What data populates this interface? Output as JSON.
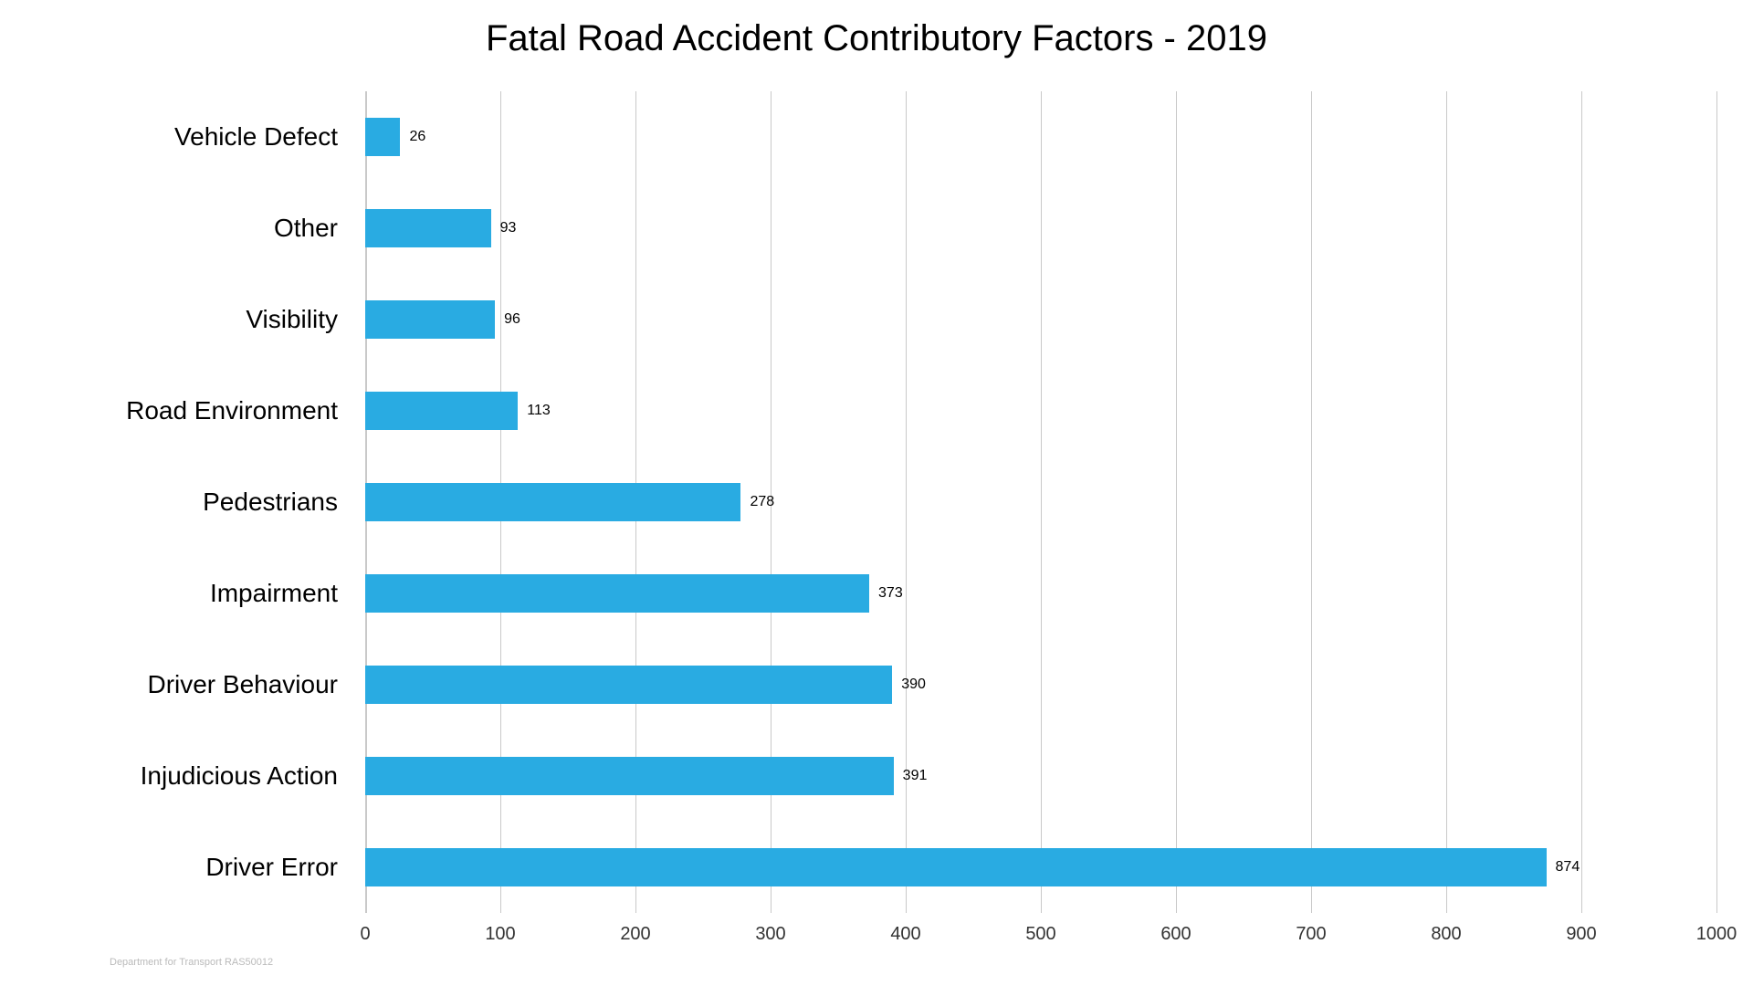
{
  "chart": {
    "type": "bar-horizontal",
    "title": "Fatal Road Accident Contributory Factors - 2019",
    "title_fontsize": 40,
    "title_color": "#000000",
    "background_color": "#ffffff",
    "bar_color": "#29abe2",
    "grid_color": "#c9c9c9",
    "axis_line_color": "#c9c9c9",
    "category_label_fontsize": 28,
    "category_label_color": "#000000",
    "value_label_fontsize": 16,
    "value_label_color": "#000000",
    "xtick_label_fontsize": 20,
    "xtick_label_color": "#333333",
    "xlim_min": 0,
    "xlim_max": 1000,
    "xtick_step": 100,
    "xticks": [
      0,
      100,
      200,
      300,
      400,
      500,
      600,
      700,
      800,
      900,
      1000
    ],
    "bar_relative_height": 0.42,
    "categories": [
      {
        "label": "Vehicle Defect",
        "value": 26
      },
      {
        "label": "Other",
        "value": 93
      },
      {
        "label": "Visibility",
        "value": 96
      },
      {
        "label": "Road Environment",
        "value": 113
      },
      {
        "label": "Pedestrians",
        "value": 278
      },
      {
        "label": "Impairment",
        "value": 373
      },
      {
        "label": "Driver Behaviour",
        "value": 390
      },
      {
        "label": "Injudicious Action",
        "value": 391
      },
      {
        "label": "Driver Error",
        "value": 874
      }
    ],
    "source_note": "Department for Transport RAS50012",
    "source_note_fontsize": 11,
    "source_note_color": "#bbbbbb"
  }
}
